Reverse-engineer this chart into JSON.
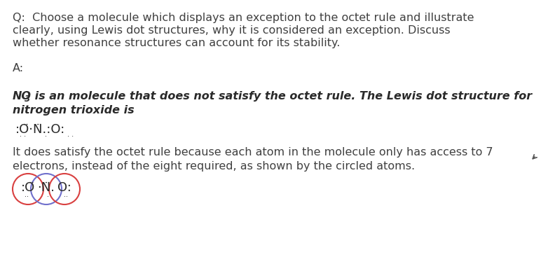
{
  "bg_color": "#ffffff",
  "text_color": "#404040",
  "q_text_line1": "Q:  Choose a molecule which displays an exception to the octet rule and illustrate",
  "q_text_line2": "clearly, using Lewis dot structures, why it is considered an exception. Discuss",
  "q_text_line3": "whether resonance structures can account for its stability.",
  "a_label": "A:",
  "bi_line1_pre": "NO",
  "bi_line1_sub": "3",
  "bi_line1_post": " is an molecule that does not satisfy the octet rule. The Lewis dot structure for",
  "bi_line2": "nitrogen trioxide is",
  "body_line1": "It does satisfy the octet rule because each atom in the molecule only has access to 7",
  "body_line2": "electrons, instead of the eight required, as shown by the circled atoms.",
  "circle_O1_color": "#d94040",
  "circle_N_color": "#7070cc",
  "circle_O2_color": "#d94040",
  "fig_width": 7.92,
  "fig_height": 3.97,
  "dpi": 100,
  "text_color_dark": "#2a2a2a"
}
